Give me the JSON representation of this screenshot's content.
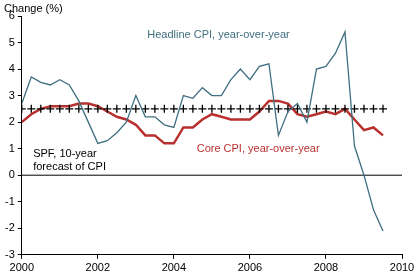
{
  "chart_data": {
    "type": "line",
    "y_label": "Change (%)",
    "x": [
      2000,
      2000.25,
      2000.5,
      2000.75,
      2001,
      2001.25,
      2001.5,
      2001.75,
      2002,
      2002.25,
      2002.5,
      2002.75,
      2003,
      2003.25,
      2003.5,
      2003.75,
      2004,
      2004.25,
      2004.5,
      2004.75,
      2005,
      2005.25,
      2005.5,
      2005.75,
      2006,
      2006.25,
      2006.5,
      2006.75,
      2007,
      2007.25,
      2007.5,
      2007.75,
      2008,
      2008.25,
      2008.5,
      2008.75,
      2009,
      2009.25,
      2009.5
    ],
    "series": [
      {
        "name": "Headline CPI, year-over-year",
        "color": "#3f6f80",
        "marker": "none",
        "line_style": "solid",
        "values": [
          2.7,
          3.7,
          3.5,
          3.4,
          3.6,
          3.4,
          2.8,
          2.0,
          1.2,
          1.3,
          1.6,
          2.0,
          3.0,
          2.2,
          2.2,
          1.9,
          1.8,
          3.0,
          2.9,
          3.3,
          3.0,
          3.0,
          3.6,
          4.0,
          3.6,
          4.1,
          4.2,
          1.5,
          2.4,
          2.7,
          2.0,
          4.0,
          4.1,
          4.6,
          5.4,
          1.1,
          0.0,
          -1.3,
          -2.1
        ]
      },
      {
        "name": "SPF, 10-year forecast of CPI",
        "color": "#000000",
        "marker": "cross",
        "line_style": "none",
        "values": [
          2.5,
          2.5,
          2.5,
          2.5,
          2.5,
          2.5,
          2.5,
          2.5,
          2.5,
          2.5,
          2.5,
          2.5,
          2.5,
          2.5,
          2.5,
          2.5,
          2.5,
          2.5,
          2.5,
          2.5,
          2.5,
          2.5,
          2.5,
          2.5,
          2.5,
          2.5,
          2.5,
          2.5,
          2.5,
          2.5,
          2.5,
          2.5,
          2.5,
          2.5,
          2.5,
          2.5,
          2.5,
          2.5,
          2.5
        ]
      },
      {
        "name": "Core CPI, year-over-year",
        "color": "#b8312f",
        "marker": "none",
        "line_style": "solid",
        "values": [
          2.0,
          2.3,
          2.5,
          2.6,
          2.6,
          2.6,
          2.7,
          2.7,
          2.6,
          2.4,
          2.2,
          2.1,
          1.9,
          1.5,
          1.5,
          1.2,
          1.2,
          1.8,
          1.8,
          2.1,
          2.3,
          2.2,
          2.1,
          2.1,
          2.1,
          2.4,
          2.8,
          2.8,
          2.7,
          2.3,
          2.2,
          2.3,
          2.4,
          2.3,
          2.5,
          2.1,
          1.7,
          1.8,
          1.5
        ]
      }
    ],
    "xlim": [
      2000,
      2010
    ],
    "xticks": [
      2000,
      2002,
      2004,
      2006,
      2008,
      2010
    ],
    "ylim": [
      -3,
      6
    ],
    "yticks": [
      -3,
      -2,
      -1,
      0,
      1,
      2,
      3,
      4,
      5,
      6
    ],
    "grid": false
  }
}
